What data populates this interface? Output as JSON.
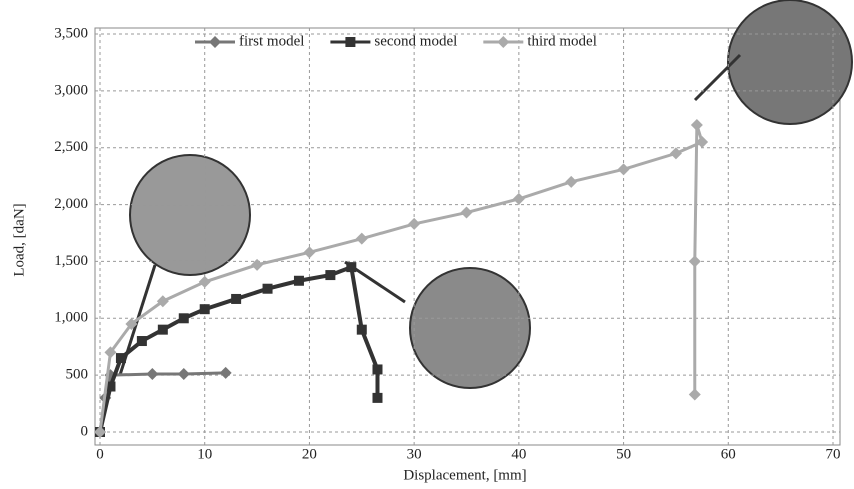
{
  "chart_data": {
    "type": "line",
    "x_label": "Displacement, [mm]",
    "y_label": "Load, [daN]",
    "xlim": [
      0,
      70
    ],
    "ylim": [
      0,
      3500
    ],
    "xticks": [
      0,
      10,
      20,
      30,
      40,
      50,
      60,
      70
    ],
    "yticks": [
      0,
      500,
      {
        "value": 1000,
        "label": "1,000"
      },
      {
        "value": 1500,
        "label": "1,500"
      },
      {
        "value": 2000,
        "label": "2,000"
      },
      {
        "value": 2500,
        "label": "2,500"
      },
      {
        "value": 3000,
        "label": "3,000"
      },
      {
        "value": 3500,
        "label": "3,500"
      }
    ],
    "grid": true,
    "legend": "top",
    "series": [
      {
        "name": "first model",
        "color": "#777777",
        "marker": "diamond",
        "x": [
          0,
          0.5,
          1,
          5,
          8,
          12
        ],
        "values": [
          0,
          300,
          500,
          510,
          510,
          520
        ]
      },
      {
        "name": "second model",
        "color": "#333333",
        "marker": "square",
        "x": [
          0,
          1,
          2,
          4,
          6,
          8,
          10,
          13,
          16,
          19,
          22,
          24,
          25,
          26.5,
          26.5
        ],
        "values": [
          0,
          400,
          650,
          800,
          900,
          1000,
          1080,
          1170,
          1260,
          1330,
          1380,
          1450,
          900,
          550,
          300
        ]
      },
      {
        "name": "third model",
        "color": "#aaaaaa",
        "marker": "diamond",
        "x": [
          0,
          1,
          3,
          6,
          10,
          15,
          20,
          25,
          30,
          35,
          40,
          45,
          50,
          55,
          57.5,
          57,
          56.8,
          56.8
        ],
        "values": [
          0,
          700,
          950,
          1150,
          1320,
          1470,
          1580,
          1700,
          1830,
          1930,
          2050,
          2200,
          2310,
          2450,
          2550,
          2700,
          1500,
          330
        ]
      }
    ]
  }
}
